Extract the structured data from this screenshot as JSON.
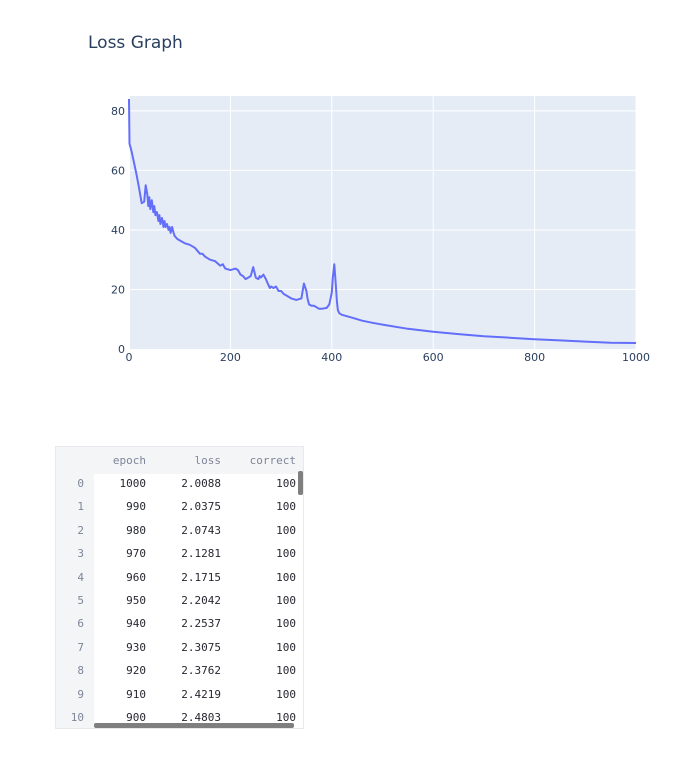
{
  "chart_data": {
    "type": "line",
    "title": "Loss Graph",
    "xlabel": "",
    "ylabel": "",
    "xlim": [
      0,
      1000
    ],
    "ylim": [
      0,
      85
    ],
    "xticks": [
      0,
      200,
      400,
      600,
      800,
      1000
    ],
    "yticks": [
      0,
      20,
      40,
      60,
      80
    ],
    "grid": true,
    "line_color": "#636efa",
    "plot_bg": "#e5ecf6",
    "x": [
      0,
      1,
      5,
      10,
      15,
      20,
      25,
      30,
      33,
      36,
      38,
      40,
      42,
      45,
      48,
      50,
      52,
      55,
      58,
      60,
      62,
      65,
      68,
      70,
      72,
      75,
      78,
      80,
      82,
      85,
      88,
      90,
      95,
      100,
      110,
      120,
      130,
      140,
      145,
      150,
      160,
      170,
      180,
      185,
      190,
      200,
      210,
      215,
      220,
      225,
      230,
      240,
      245,
      250,
      255,
      258,
      260,
      265,
      270,
      275,
      278,
      280,
      285,
      290,
      295,
      300,
      305,
      310,
      320,
      330,
      340,
      345,
      350,
      352,
      355,
      360,
      365,
      370,
      375,
      380,
      390,
      395,
      400,
      402,
      405,
      407,
      410,
      412,
      415,
      420,
      440,
      460,
      480,
      500,
      550,
      600,
      650,
      700,
      750,
      800,
      850,
      900,
      950,
      1000
    ],
    "y": [
      84,
      69,
      66.5,
      62.5,
      58.5,
      54,
      49,
      49.5,
      55,
      52,
      48,
      51,
      47,
      50,
      46,
      48,
      45,
      46,
      43,
      45,
      42,
      44,
      41,
      43,
      41,
      42,
      40,
      41,
      39,
      41,
      39,
      38,
      37,
      36.5,
      35.5,
      35,
      34,
      32,
      32,
      31,
      30,
      29.5,
      28,
      28.5,
      27,
      26.5,
      27,
      26.5,
      25,
      24.5,
      23.5,
      24.5,
      27.5,
      24,
      23.5,
      24.5,
      24,
      25,
      23.5,
      21.5,
      20.5,
      21,
      20.5,
      21,
      19.5,
      19.5,
      18.5,
      18,
      17,
      16.5,
      17,
      22,
      19.5,
      17,
      15,
      14.5,
      14.5,
      14,
      13.5,
      13.5,
      13.8,
      15,
      19,
      24,
      28.5,
      24,
      16,
      13,
      12,
      11.5,
      10.5,
      9.5,
      8.8,
      8.2,
      6.8,
      5.8,
      5.0,
      4.3,
      3.8,
      3.3,
      2.9,
      2.5,
      2.1,
      2.0
    ]
  },
  "table": {
    "headers": [
      "epoch",
      "loss",
      "correct"
    ],
    "index": [
      "0",
      "1",
      "2",
      "3",
      "4",
      "5",
      "6",
      "7",
      "8",
      "9",
      "10"
    ],
    "rows": [
      [
        "1000",
        "2.0088",
        "100"
      ],
      [
        "990",
        "2.0375",
        "100"
      ],
      [
        "980",
        "2.0743",
        "100"
      ],
      [
        "970",
        "2.1281",
        "100"
      ],
      [
        "960",
        "2.1715",
        "100"
      ],
      [
        "950",
        "2.2042",
        "100"
      ],
      [
        "940",
        "2.2537",
        "100"
      ],
      [
        "930",
        "2.3075",
        "100"
      ],
      [
        "920",
        "2.3762",
        "100"
      ],
      [
        "910",
        "2.4219",
        "100"
      ],
      [
        "900",
        "2.4803",
        "100"
      ]
    ]
  }
}
